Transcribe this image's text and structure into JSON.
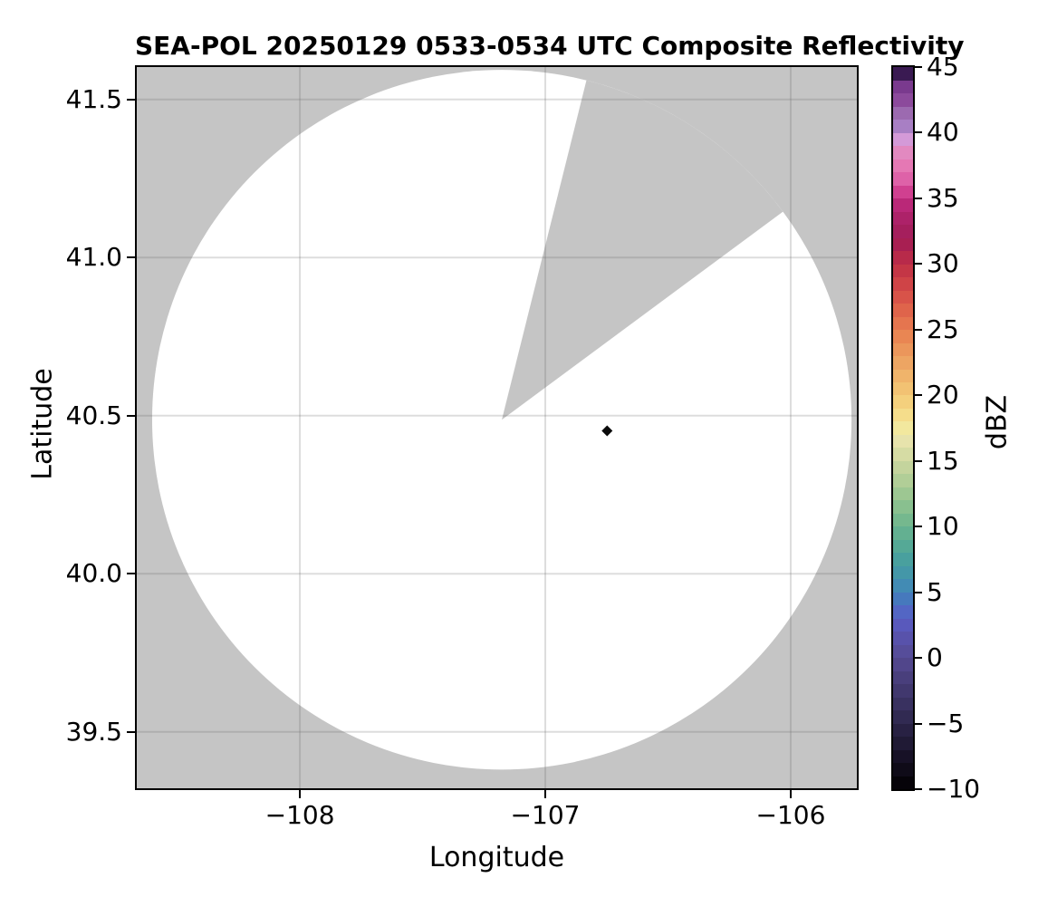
{
  "title": "SEA-POL 20250129 0533-0534 UTC Composite Reflectivity",
  "chart_data": {
    "type": "heatmap",
    "title": "SEA-POL 20250129 0533-0534 UTC Composite Reflectivity",
    "xlabel": "Longitude",
    "ylabel": "Latitude",
    "xlim": [
      -108.672,
      -105.723
    ],
    "ylim": [
      39.316,
      41.608
    ],
    "xticks": [
      -108,
      -107,
      -106
    ],
    "xtick_labels": [
      "−108",
      "−107",
      "−106"
    ],
    "yticks": [
      41.5,
      41.0,
      40.5,
      40.0,
      39.5
    ],
    "ytick_labels": [
      "41.5",
      "41.0",
      "40.5",
      "40.0",
      "39.5"
    ],
    "grid": true,
    "grid_color": "rgba(102,102,102,0.22)",
    "background_outside_scan": "#c5c5c5",
    "scan_area_color": "#ffffff",
    "radar": {
      "name": "SEA-POL",
      "center_lon": -107.177,
      "center_lat": 40.487,
      "scan_radius_deg_lon": 1.425,
      "blocked_sector_azimuth_deg": [
        14,
        53.5
      ]
    },
    "echoes": [
      {
        "lon": -106.748,
        "lat": 40.452,
        "dbz_approx": -10,
        "color": "#0b0b0b",
        "shape": "diamond"
      }
    ],
    "colorbar": {
      "label": "dBZ",
      "min": -10,
      "max": 45,
      "ticks": [
        45,
        40,
        35,
        30,
        25,
        20,
        15,
        10,
        5,
        0,
        -5,
        -10
      ],
      "tick_labels": [
        "45",
        "40",
        "35",
        "30",
        "25",
        "20",
        "15",
        "10",
        "5",
        "0",
        "−5",
        "−10"
      ],
      "step_dbz": 1,
      "colors_bottom_to_top": [
        "#060309",
        "#0f0b18",
        "#171126",
        "#201a35",
        "#282143",
        "#312a52",
        "#393160",
        "#41386e",
        "#493f7c",
        "#51468b",
        "#564d9a",
        "#5852ab",
        "#5959bc",
        "#5366c4",
        "#4679bd",
        "#428bb4",
        "#4497a8",
        "#49a09e",
        "#55a996",
        "#63b091",
        "#75b88e",
        "#89c08f",
        "#9dc792",
        "#b1ce97",
        "#c4d49d",
        "#d6dca4",
        "#e7e3ac",
        "#f2e89e",
        "#f5dd8b",
        "#f4d07d",
        "#f2c273",
        "#f0b46b",
        "#eda563",
        "#eb965b",
        "#e98653",
        "#e5754f",
        "#df644b",
        "#d85349",
        "#cf4447",
        "#c43646",
        "#b82a4a",
        "#a81f52",
        "#a51f5d",
        "#ad2269",
        "#ba2878",
        "#d04090",
        "#de62a8",
        "#e578b4",
        "#e289c0",
        "#d49ad8",
        "#a87fc4",
        "#9c6ab0",
        "#8c4a9c",
        "#7a3a8e",
        "#3a1a52"
      ]
    }
  }
}
